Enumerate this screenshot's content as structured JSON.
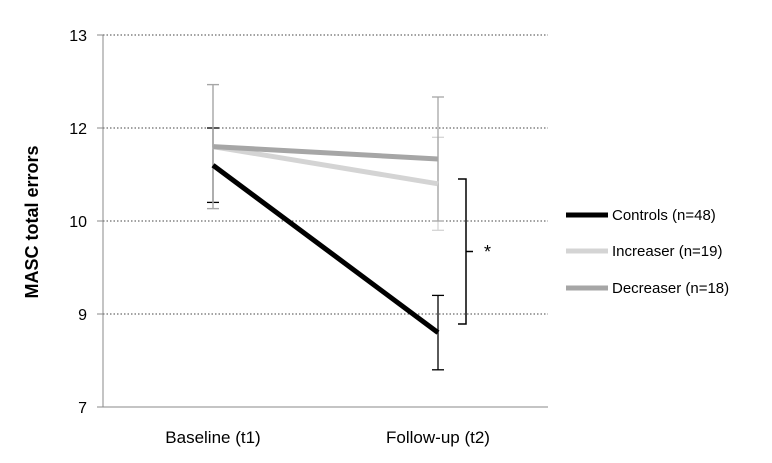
{
  "chart_data": {
    "type": "line",
    "title": "",
    "xlabel": "",
    "ylabel": "MASC total errors",
    "categories": [
      "Baseline (t1)",
      "Follow-up (t2)"
    ],
    "y_tick_labels": [
      "7",
      "9",
      "10",
      "12",
      "13"
    ],
    "ylim": [
      7,
      13
    ],
    "grid": "horizontal dotted",
    "legend_position": "right",
    "series": [
      {
        "name": "Controls (n=48)",
        "values": [
          10.9,
          8.2
        ],
        "error": [
          0.6,
          0.6
        ],
        "color": "#000000"
      },
      {
        "name": "Increaser (n=19)",
        "values": [
          11.2,
          10.6
        ],
        "error": [
          1.0,
          0.75
        ],
        "color": "#d4d4d4"
      },
      {
        "name": "Decreaser (n=18)",
        "values": [
          11.2,
          11.0
        ],
        "error": [
          1.0,
          1.0
        ],
        "color": "#a6a6a6"
      }
    ],
    "annotation": "*"
  }
}
